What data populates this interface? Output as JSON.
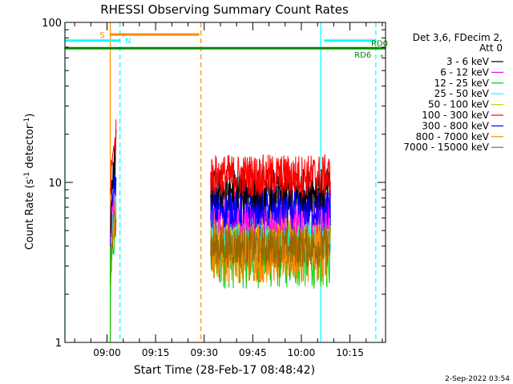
{
  "chart_data": {
    "type": "line",
    "title": "RHESSI Observing Summary Count Rates",
    "xlabel": "Start Time (28-Feb-17 08:48:42)",
    "ylabel_main": "Count Rate (s",
    "ylabel_sup1": "-1",
    "ylabel_mid": " detector",
    "ylabel_sup2": "-1",
    "ylabel_end": ")",
    "yscale": "log",
    "xlim_minutes": [
      -13,
      86
    ],
    "ylim": [
      1,
      100
    ],
    "x_ticks": [
      {
        "m": 0,
        "label": "09:00"
      },
      {
        "m": 15,
        "label": "09:15"
      },
      {
        "m": 30,
        "label": "09:30"
      },
      {
        "m": 45,
        "label": "09:45"
      },
      {
        "m": 60,
        "label": "10:00"
      },
      {
        "m": 75,
        "label": "10:15"
      }
    ],
    "y_ticks": [
      {
        "v": 1,
        "label": "1"
      },
      {
        "v": 10,
        "label": "10"
      },
      {
        "v": 100,
        "label": "100"
      }
    ],
    "legend": {
      "position": "right",
      "header": [
        "Det 3,6, FDecim 2,",
        "Att 0"
      ],
      "entries": [
        {
          "label": "3 - 6 keV",
          "color": "#000000"
        },
        {
          "label": "6 - 12 keV",
          "color": "#ff00ff"
        },
        {
          "label": "12 - 25 keV",
          "color": "#00cc00"
        },
        {
          "label": "25 - 50 keV",
          "color": "#00ffff"
        },
        {
          "label": "50 - 100 keV",
          "color": "#cccc00"
        },
        {
          "label": "100 - 300 keV",
          "color": "#ff0000"
        },
        {
          "label": "300 - 800 keV",
          "color": "#0000ff"
        },
        {
          "label": "800 - 7000 keV",
          "color": "#ff8800"
        },
        {
          "label": "7000 - 15000 keV",
          "color": "#996600"
        }
      ]
    },
    "annotations": [
      {
        "text": "S",
        "color": "#ff8800"
      },
      {
        "text": "N",
        "color": "#00ffff"
      },
      {
        "text": "RD0",
        "color": "#008800"
      },
      {
        "text": "RD6",
        "color": "#008800"
      }
    ],
    "state_bars": [
      {
        "name": "S",
        "color": "#ff8800",
        "start": 1,
        "end": 28.5,
        "value": 84
      },
      {
        "name": "N",
        "color": "#00ffff",
        "start": -13,
        "end": 4,
        "value": 77
      },
      {
        "name": "N",
        "color": "#00ffff",
        "start": 67,
        "end": 83,
        "value": 77
      },
      {
        "name": "RD",
        "color": "#008800",
        "start": -13,
        "end": 86,
        "value": 69
      }
    ],
    "vlines": [
      {
        "m": 1,
        "color": "#ff8800",
        "style": "solid"
      },
      {
        "m": -13,
        "color": "#00ffff",
        "style": "solid"
      },
      {
        "m": 4,
        "color": "#00ffff",
        "style": "dashed"
      },
      {
        "m": 29,
        "color": "#ff8800",
        "style": "dashed"
      },
      {
        "m": 66,
        "color": "#00ffff",
        "style": "solid"
      },
      {
        "m": 83,
        "color": "#00ffff",
        "style": "dashed"
      }
    ],
    "segments": [
      {
        "start": 1,
        "end": 2.8
      },
      {
        "start": 32,
        "end": 69
      }
    ],
    "series": [
      {
        "label": "3 - 6 keV",
        "color": "#000000",
        "values": [
          9,
          9
        ]
      },
      {
        "label": "6 - 12 keV",
        "color": "#ff00ff",
        "values": [
          6.5,
          6.5
        ]
      },
      {
        "label": "12 - 25 keV",
        "color": "#00cc00",
        "values": [
          3.5,
          3.5
        ]
      },
      {
        "label": "25 - 50 keV",
        "color": "#00ffff",
        "values": [
          4.5,
          4.5
        ]
      },
      {
        "label": "50 - 100 keV",
        "color": "#cccc00",
        "values": [
          5,
          5
        ]
      },
      {
        "label": "100 - 300 keV",
        "color": "#ff0000",
        "values": [
          12,
          11
        ]
      },
      {
        "label": "300 - 800 keV",
        "color": "#0000ff",
        "values": [
          7,
          7
        ]
      },
      {
        "label": "800 - 7000 keV",
        "color": "#ff8800",
        "values": [
          3.8,
          3.8
        ]
      },
      {
        "label": "7000 - 15000 keV",
        "color": "#996600",
        "values": [
          4,
          4
        ]
      }
    ]
  },
  "footer": {
    "timestamp": "2-Sep-2022 03:54"
  }
}
